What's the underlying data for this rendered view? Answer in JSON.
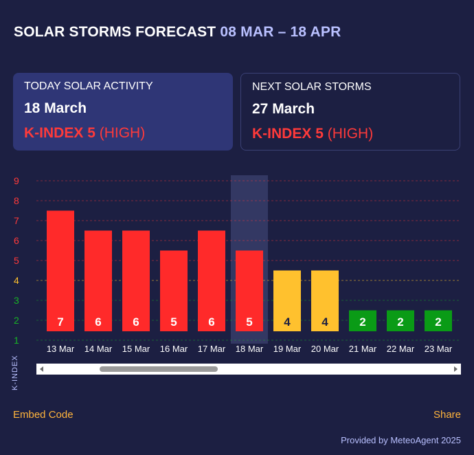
{
  "header": {
    "title": "SOLAR STORMS FORECAST",
    "range": "08 MAR – 18 APR"
  },
  "cards": {
    "today": {
      "label": "TODAY SOLAR ACTIVITY",
      "date": "18 March",
      "k_name": "K-INDEX",
      "k_value": "5",
      "k_level": "(HIGH)"
    },
    "next": {
      "label": "NEXT SOLAR STORMS",
      "date": "27 March",
      "k_name": "K-INDEX",
      "k_value": "5",
      "k_level": "(HIGH)"
    }
  },
  "footer": {
    "embed": "Embed Code",
    "share": "Share",
    "credit": "Provided by MeteoAgent 2025"
  },
  "colors": {
    "high": "#ff2a2a",
    "moderate": "#ffc12e",
    "low": "#0a9b16",
    "tick_high": "#ff3a3a",
    "tick_moderate": "#ffc12e",
    "tick_low": "#18b425",
    "highlight": "#333863"
  },
  "chart_data": {
    "type": "bar",
    "ylabel": "K-INDEX",
    "ylim": [
      1,
      9
    ],
    "yticks": [
      1,
      2,
      3,
      4,
      5,
      6,
      7,
      8,
      9
    ],
    "categories": [
      "13 Mar",
      "14 Mar",
      "15 Mar",
      "16 Mar",
      "17 Mar",
      "18 Mar",
      "19 Mar",
      "20 Mar",
      "21 Mar",
      "22 Mar",
      "23 Mar"
    ],
    "values": [
      7,
      6,
      6,
      5,
      6,
      5,
      4,
      4,
      2,
      2,
      2
    ],
    "highlighted_category": "18 Mar",
    "grid": true
  }
}
